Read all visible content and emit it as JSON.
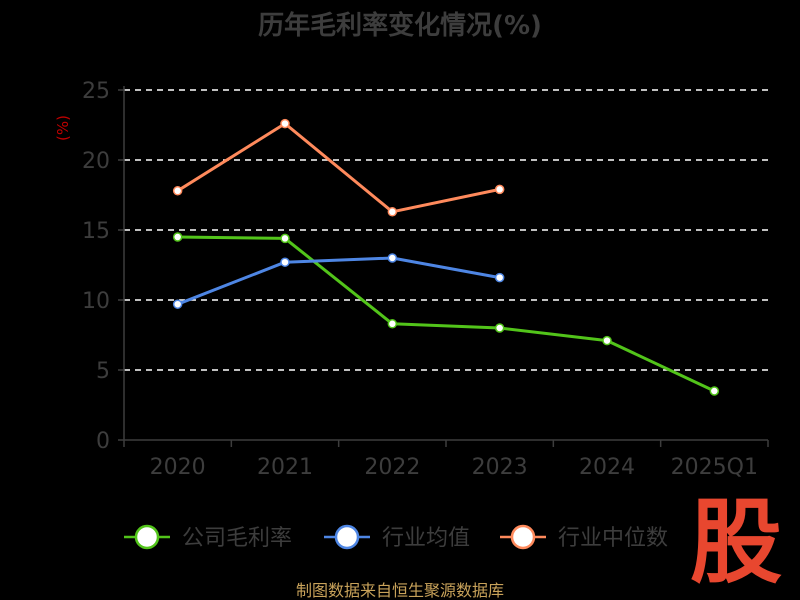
{
  "chart_data": {
    "type": "line",
    "title": "历年毛利率变化情况(%)",
    "ylabel": "(%)",
    "xlabel": "",
    "categories": [
      "2020",
      "2021",
      "2022",
      "2023",
      "2024",
      "2025Q1"
    ],
    "yticks": [
      "0",
      "5",
      "10",
      "15",
      "20",
      "25"
    ],
    "ylim": [
      0,
      25
    ],
    "grid": true,
    "legend_position": "bottom",
    "series": [
      {
        "name": "公司毛利率",
        "color": "#52c41a",
        "values": [
          14.5,
          14.4,
          8.3,
          8.0,
          7.1,
          3.5
        ]
      },
      {
        "name": "行业均值",
        "color": "#4e86e4",
        "values": [
          9.7,
          12.7,
          13.0,
          11.6,
          null,
          null
        ]
      },
      {
        "name": "行业中位数",
        "color": "#ff8a5c",
        "values": [
          17.8,
          22.6,
          16.3,
          17.9,
          null,
          null
        ]
      }
    ]
  },
  "footer": {
    "source": "制图数据来自恒生聚源数据库",
    "brand": "股"
  }
}
